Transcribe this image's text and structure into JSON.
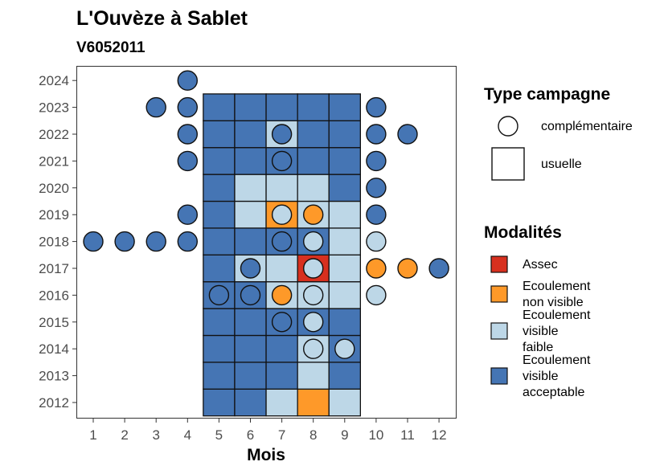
{
  "chart_data": {
    "type": "heatmap",
    "title": "L'Ouvèze à Sablet",
    "subtitle": "V6052011",
    "xlabel": "Mois",
    "ylabel": "",
    "x_ticks": [
      "1",
      "2",
      "3",
      "4",
      "5",
      "6",
      "7",
      "8",
      "9",
      "10",
      "11",
      "12"
    ],
    "y_ticks": [
      "2012",
      "2013",
      "2014",
      "2015",
      "2016",
      "2017",
      "2018",
      "2019",
      "2020",
      "2021",
      "2022",
      "2023",
      "2024"
    ],
    "xlim": [
      0.5,
      12.5
    ],
    "ylim": [
      2011.4,
      2024.6
    ],
    "grid": false,
    "legend_position": "right",
    "legend_shape": {
      "title": "Type campagne",
      "items": [
        {
          "label": "complémentaire",
          "shape": "circle"
        },
        {
          "label": "usuelle",
          "shape": "square"
        }
      ]
    },
    "legend_fill": {
      "title": "Modalités",
      "items": [
        {
          "key": "assec",
          "lines": [
            "Assec"
          ],
          "color": "#d7301f"
        },
        {
          "key": "nonvisible",
          "lines": [
            "Ecoulement",
            "non visible"
          ],
          "color": "#fe9929"
        },
        {
          "key": "faible",
          "lines": [
            "Ecoulement",
            "visible",
            "faible"
          ],
          "color": "#bdd7e7"
        },
        {
          "key": "acceptable",
          "lines": [
            "Ecoulement",
            "visible",
            "acceptable"
          ],
          "color": "#4575b4"
        }
      ]
    },
    "usuelle": [
      {
        "year": 2012,
        "months": [
          5,
          6,
          7,
          8,
          9
        ],
        "values": [
          "acceptable",
          "acceptable",
          "faible",
          "nonvisible",
          "faible"
        ]
      },
      {
        "year": 2013,
        "months": [
          5,
          6,
          7,
          8,
          9
        ],
        "values": [
          "acceptable",
          "acceptable",
          "acceptable",
          "faible",
          "acceptable"
        ]
      },
      {
        "year": 2014,
        "months": [
          5,
          6,
          7,
          8,
          9
        ],
        "values": [
          "acceptable",
          "acceptable",
          "acceptable",
          "faible",
          "acceptable"
        ]
      },
      {
        "year": 2015,
        "months": [
          5,
          6,
          7,
          8,
          9
        ],
        "values": [
          "acceptable",
          "acceptable",
          "acceptable",
          "acceptable",
          "acceptable"
        ]
      },
      {
        "year": 2016,
        "months": [
          5,
          6,
          7,
          8,
          9
        ],
        "values": [
          "acceptable",
          "acceptable",
          "faible",
          "faible",
          "faible"
        ]
      },
      {
        "year": 2017,
        "months": [
          5,
          6,
          7,
          8,
          9
        ],
        "values": [
          "acceptable",
          "faible",
          "faible",
          "assec",
          "faible"
        ]
      },
      {
        "year": 2018,
        "months": [
          5,
          6,
          7,
          8,
          9
        ],
        "values": [
          "acceptable",
          "acceptable",
          "acceptable",
          "acceptable",
          "faible"
        ]
      },
      {
        "year": 2019,
        "months": [
          5,
          6,
          7,
          8,
          9
        ],
        "values": [
          "acceptable",
          "faible",
          "nonvisible",
          "faible",
          "faible"
        ]
      },
      {
        "year": 2020,
        "months": [
          5,
          6,
          7,
          8,
          9
        ],
        "values": [
          "acceptable",
          "faible",
          "faible",
          "faible",
          "acceptable"
        ]
      },
      {
        "year": 2021,
        "months": [
          5,
          6,
          7,
          8,
          9
        ],
        "values": [
          "acceptable",
          "acceptable",
          "acceptable",
          "acceptable",
          "acceptable"
        ]
      },
      {
        "year": 2022,
        "months": [
          5,
          6,
          7,
          8,
          9
        ],
        "values": [
          "acceptable",
          "acceptable",
          "faible",
          "acceptable",
          "acceptable"
        ]
      },
      {
        "year": 2023,
        "months": [
          5,
          6,
          7,
          8,
          9
        ],
        "values": [
          "acceptable",
          "acceptable",
          "acceptable",
          "acceptable",
          "acceptable"
        ]
      }
    ],
    "complementaire": [
      {
        "year": 2024,
        "month": 4,
        "value": "acceptable"
      },
      {
        "year": 2023,
        "month": 3,
        "value": "acceptable"
      },
      {
        "year": 2023,
        "month": 4,
        "value": "acceptable"
      },
      {
        "year": 2023,
        "month": 10,
        "value": "acceptable"
      },
      {
        "year": 2022,
        "month": 4,
        "value": "acceptable"
      },
      {
        "year": 2022,
        "month": 7,
        "value": "acceptable"
      },
      {
        "year": 2022,
        "month": 10,
        "value": "acceptable"
      },
      {
        "year": 2022,
        "month": 11,
        "value": "acceptable"
      },
      {
        "year": 2021,
        "month": 4,
        "value": "acceptable"
      },
      {
        "year": 2021,
        "month": 7,
        "value": "acceptable"
      },
      {
        "year": 2021,
        "month": 10,
        "value": "acceptable"
      },
      {
        "year": 2020,
        "month": 10,
        "value": "acceptable"
      },
      {
        "year": 2019,
        "month": 4,
        "value": "acceptable"
      },
      {
        "year": 2019,
        "month": 7,
        "value": "faible"
      },
      {
        "year": 2019,
        "month": 8,
        "value": "nonvisible"
      },
      {
        "year": 2019,
        "month": 10,
        "value": "acceptable"
      },
      {
        "year": 2018,
        "month": 1,
        "value": "acceptable"
      },
      {
        "year": 2018,
        "month": 2,
        "value": "acceptable"
      },
      {
        "year": 2018,
        "month": 3,
        "value": "acceptable"
      },
      {
        "year": 2018,
        "month": 4,
        "value": "acceptable"
      },
      {
        "year": 2018,
        "month": 7,
        "value": "acceptable"
      },
      {
        "year": 2018,
        "month": 8,
        "value": "faible"
      },
      {
        "year": 2018,
        "month": 10,
        "value": "faible"
      },
      {
        "year": 2017,
        "month": 6,
        "value": "acceptable"
      },
      {
        "year": 2017,
        "month": 8,
        "value": "faible"
      },
      {
        "year": 2017,
        "month": 10,
        "value": "nonvisible"
      },
      {
        "year": 2017,
        "month": 11,
        "value": "nonvisible"
      },
      {
        "year": 2017,
        "month": 12,
        "value": "acceptable"
      },
      {
        "year": 2016,
        "month": 5,
        "value": "acceptable"
      },
      {
        "year": 2016,
        "month": 6,
        "value": "acceptable"
      },
      {
        "year": 2016,
        "month": 7,
        "value": "nonvisible"
      },
      {
        "year": 2016,
        "month": 8,
        "value": "faible"
      },
      {
        "year": 2016,
        "month": 10,
        "value": "faible"
      },
      {
        "year": 2015,
        "month": 7,
        "value": "acceptable"
      },
      {
        "year": 2015,
        "month": 8,
        "value": "faible"
      },
      {
        "year": 2014,
        "month": 8,
        "value": "faible"
      },
      {
        "year": 2014,
        "month": 9,
        "value": "faible"
      }
    ]
  }
}
